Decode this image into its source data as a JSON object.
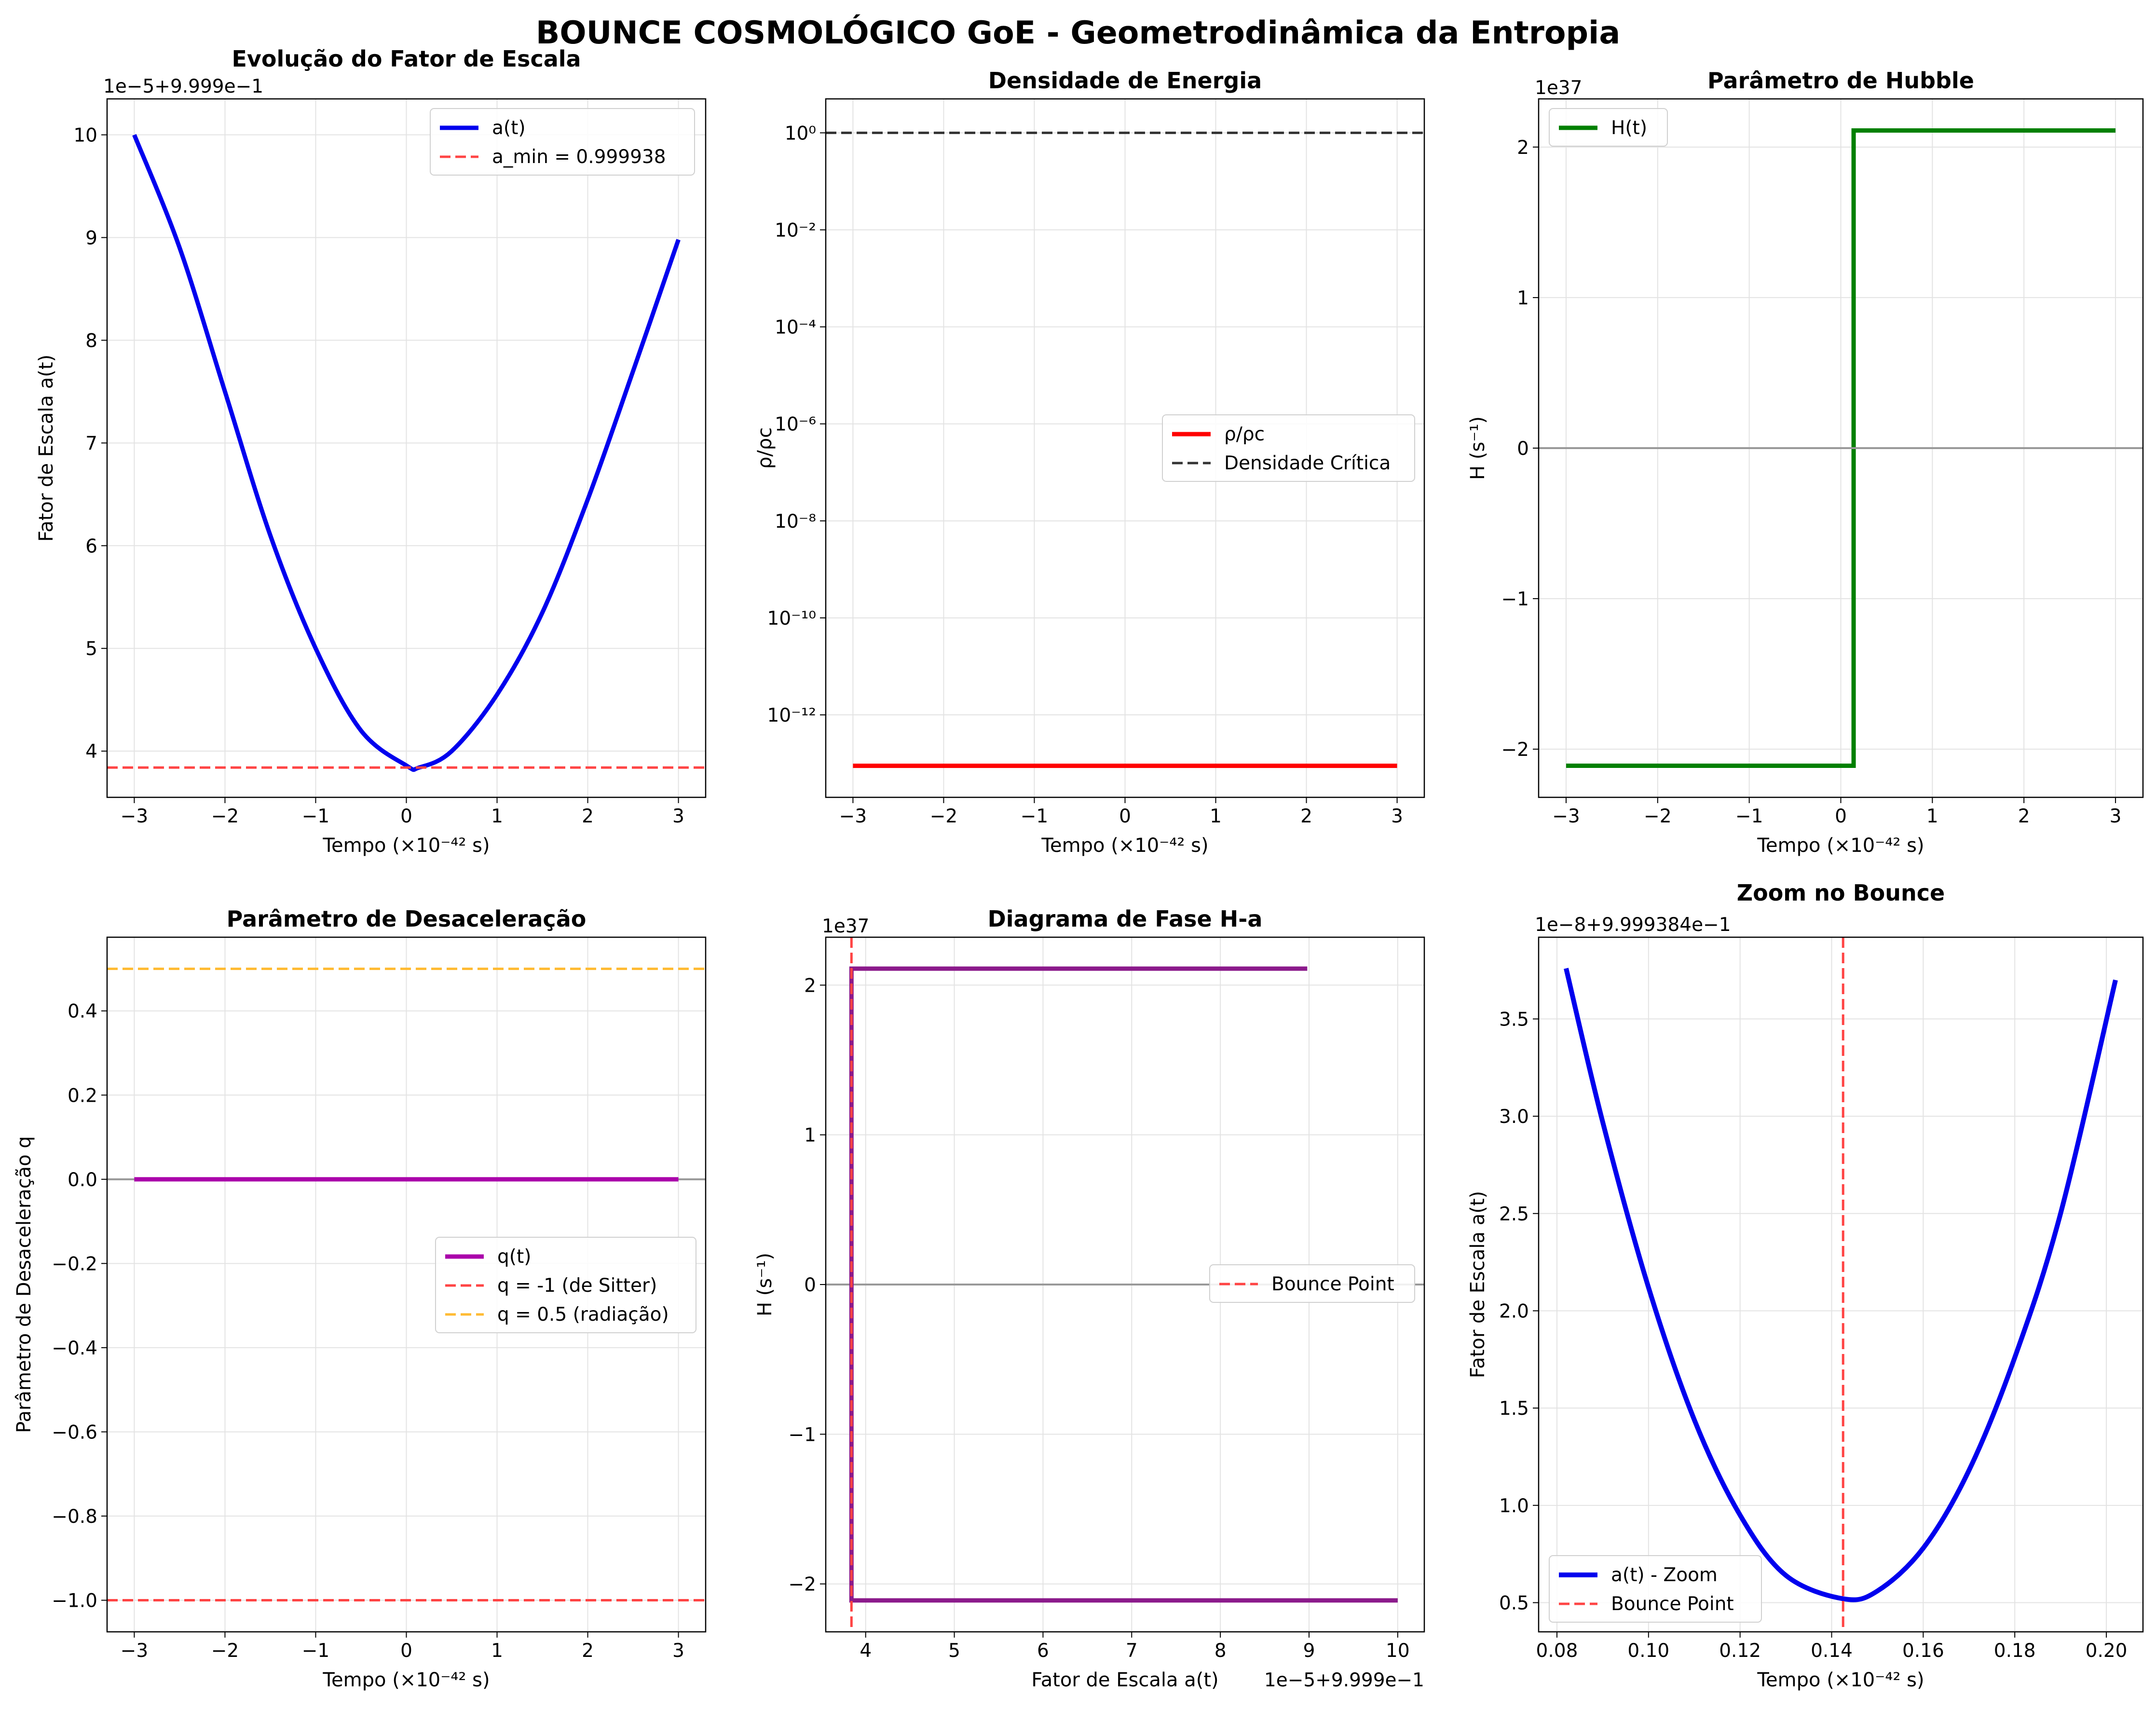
{
  "figure_title": "BOUNCE COSMOLÓGICO GoE - Geometrodinâmica da Entropia",
  "chart_data": [
    {
      "type": "line",
      "title": "Evolução do Fator de Escala",
      "xlabel": "Tempo (×10⁻⁴² s)",
      "ylabel": "Fator de Escala a(t)",
      "y_offset_text": "1e−5+9.999e−1",
      "xlim": [
        -3.3,
        3.3
      ],
      "ylim": [
        3.55,
        10.35
      ],
      "xticks": [
        -3,
        -2,
        -1,
        0,
        1,
        2,
        3
      ],
      "xtick_labels": [
        "−3",
        "−2",
        "−1",
        "0",
        "1",
        "2",
        "3"
      ],
      "yticks": [
        4,
        5,
        6,
        7,
        8,
        9,
        10
      ],
      "ytick_labels": [
        "4",
        "5",
        "6",
        "7",
        "8",
        "9",
        "10"
      ],
      "grid": true,
      "legend_position": "upper-right",
      "series": [
        {
          "name": "a(t)",
          "style": "solid",
          "color": "#0000ee",
          "width": 9,
          "x": [
            -3,
            -2.5,
            -2,
            -1.5,
            -1,
            -0.5,
            0,
            0.14,
            0.5,
            1,
            1.5,
            2,
            2.5,
            3
          ],
          "y": [
            10.0,
            8.9,
            7.5,
            6.1,
            5.0,
            4.2,
            3.86,
            3.84,
            4.0,
            4.55,
            5.35,
            6.45,
            7.7,
            8.98
          ]
        },
        {
          "name": "a_min = 0.999938",
          "style": "dashed",
          "color": "#ff4444",
          "width": 5,
          "hline": 3.84
        }
      ]
    },
    {
      "type": "line",
      "title": "Densidade de Energia",
      "xlabel": "Tempo (×10⁻⁴² s)",
      "ylabel": "ρ/ρc",
      "yscale": "log",
      "xlim": [
        -3.3,
        3.3
      ],
      "ylim_log10": [
        -13.7,
        0.7
      ],
      "xticks": [
        -3,
        -2,
        -1,
        0,
        1,
        2,
        3
      ],
      "xtick_labels": [
        "−3",
        "−2",
        "−1",
        "0",
        "1",
        "2",
        "3"
      ],
      "yticks_log10": [
        0,
        -2,
        -4,
        -6,
        -8,
        -10,
        -12
      ],
      "ytick_labels": [
        "10^0",
        "10^−2",
        "10^−4",
        "10^−6",
        "10^−8",
        "10^−10",
        "10^−12"
      ],
      "grid": true,
      "legend_position": "center-right",
      "series": [
        {
          "name": "ρ/ρc",
          "style": "solid",
          "color": "#ff0000",
          "width": 9,
          "x": [
            -3,
            3
          ],
          "y_log10": [
            -13.05,
            -13.05
          ]
        },
        {
          "name": "Densidade Crítica",
          "style": "dashed",
          "color": "#333333",
          "width": 5,
          "hline_log10": 0
        }
      ]
    },
    {
      "type": "line",
      "title": "Parâmetro de Hubble",
      "xlabel": "Tempo (×10⁻⁴² s)",
      "ylabel": "H (s⁻¹)",
      "y_offset_text": "1e37",
      "xlim": [
        -3.3,
        3.3
      ],
      "ylim": [
        -2.32,
        2.32
      ],
      "xticks": [
        -3,
        -2,
        -1,
        0,
        1,
        2,
        3
      ],
      "xtick_labels": [
        "−3",
        "−2",
        "−1",
        "0",
        "1",
        "2",
        "3"
      ],
      "yticks": [
        -2,
        -1,
        0,
        1,
        2
      ],
      "ytick_labels": [
        "−2",
        "−1",
        "0",
        "1",
        "2"
      ],
      "grid": true,
      "legend_position": "upper-left",
      "series": [
        {
          "name": "H(t)",
          "style": "solid",
          "color": "#008000",
          "width": 9,
          "x": [
            -3,
            0.14,
            0.14,
            3
          ],
          "y": [
            -2.11,
            -2.11,
            2.11,
            2.11
          ]
        },
        {
          "name": "",
          "style": "solid",
          "color": "#999999",
          "width": 4,
          "hline": 0
        }
      ]
    },
    {
      "type": "line",
      "title": "Parâmetro de Desaceleração",
      "xlabel": "Tempo (×10⁻⁴² s)",
      "ylabel": "Parâmetro de Desaceleração q",
      "xlim": [
        -3.3,
        3.3
      ],
      "ylim": [
        -1.075,
        0.575
      ],
      "xticks": [
        -3,
        -2,
        -1,
        0,
        1,
        2,
        3
      ],
      "xtick_labels": [
        "−3",
        "−2",
        "−1",
        "0",
        "1",
        "2",
        "3"
      ],
      "yticks": [
        0.4,
        0.2,
        0.0,
        -0.2,
        -0.4,
        -0.6,
        -0.8,
        -1.0
      ],
      "ytick_labels": [
        "0.4",
        "0.2",
        "0.0",
        "−0.2",
        "−0.4",
        "−0.6",
        "−0.8",
        "−1.0"
      ],
      "grid": true,
      "legend_position": "center-right",
      "series": [
        {
          "name": "",
          "style": "solid",
          "color": "#999999",
          "width": 4,
          "hline": 0
        },
        {
          "name": "q(t)",
          "style": "solid",
          "color": "#aa00aa",
          "width": 9,
          "x": [
            -3,
            3
          ],
          "y": [
            0,
            0
          ]
        },
        {
          "name": "q = -1 (de Sitter)",
          "style": "dashed",
          "color": "#ff4444",
          "width": 5,
          "hline": -1
        },
        {
          "name": "q = 0.5 (radiação)",
          "style": "dashed",
          "color": "#ffbb33",
          "width": 5,
          "hline": 0.5
        }
      ]
    },
    {
      "type": "line",
      "title": "Diagrama de Fase H-a",
      "xlabel": "Fator de Escala a(t)",
      "ylabel": "H (s⁻¹)",
      "y_offset_text": "1e37",
      "x_offset_text": "1e−5+9.999e−1",
      "xlim": [
        3.55,
        10.3
      ],
      "ylim": [
        -2.32,
        2.32
      ],
      "xticks": [
        4,
        5,
        6,
        7,
        8,
        9,
        10
      ],
      "xtick_labels": [
        "4",
        "5",
        "6",
        "7",
        "8",
        "9",
        "10"
      ],
      "yticks": [
        -2,
        -1,
        0,
        1,
        2
      ],
      "ytick_labels": [
        "−2",
        "−1",
        "0",
        "1",
        "2"
      ],
      "grid": true,
      "legend_position": "center-right",
      "series": [
        {
          "name": "",
          "style": "solid",
          "color": "#999999",
          "width": 4,
          "hline": 0
        },
        {
          "name": "",
          "style": "solid",
          "color": "#8b1a8b",
          "width": 9,
          "x": [
            10.0,
            3.84,
            3.84,
            8.98
          ],
          "y": [
            -2.11,
            -2.11,
            2.11,
            2.11
          ]
        },
        {
          "name": "Bounce Point",
          "style": "dashed",
          "color": "#ff4444",
          "width": 5,
          "vline": 3.84
        }
      ]
    },
    {
      "type": "line",
      "title": "Zoom no Bounce",
      "xlabel": "Tempo (×10⁻⁴² s)",
      "ylabel": "Fator de Escala a(t)",
      "y_offset_text": "1e−8+9.999384e−1",
      "xlim": [
        0.076,
        0.208
      ],
      "ylim": [
        0.35,
        3.92
      ],
      "xticks": [
        0.08,
        0.1,
        0.12,
        0.14,
        0.16,
        0.18,
        0.2
      ],
      "xtick_labels": [
        "0.08",
        "0.10",
        "0.12",
        "0.14",
        "0.16",
        "0.18",
        "0.20"
      ],
      "yticks": [
        0.5,
        1.0,
        1.5,
        2.0,
        2.5,
        3.0,
        3.5
      ],
      "ytick_labels": [
        "0.5",
        "1.0",
        "1.5",
        "2.0",
        "2.5",
        "3.0",
        "3.5"
      ],
      "grid": true,
      "legend_position": "lower-left",
      "series": [
        {
          "name": "a(t) - Zoom",
          "style": "solid",
          "color": "#0000ee",
          "width": 10,
          "x": [
            0.082,
            0.09,
            0.1,
            0.11,
            0.12,
            0.13,
            0.1425,
            0.15,
            0.16,
            0.17,
            0.18,
            0.19,
            0.202
          ],
          "y": [
            3.76,
            2.97,
            2.12,
            1.44,
            0.95,
            0.64,
            0.52,
            0.56,
            0.78,
            1.18,
            1.76,
            2.5,
            3.7
          ]
        },
        {
          "name": "Bounce Point",
          "style": "dashed",
          "color": "#ff4444",
          "width": 5,
          "vline": 0.1425
        }
      ]
    }
  ]
}
